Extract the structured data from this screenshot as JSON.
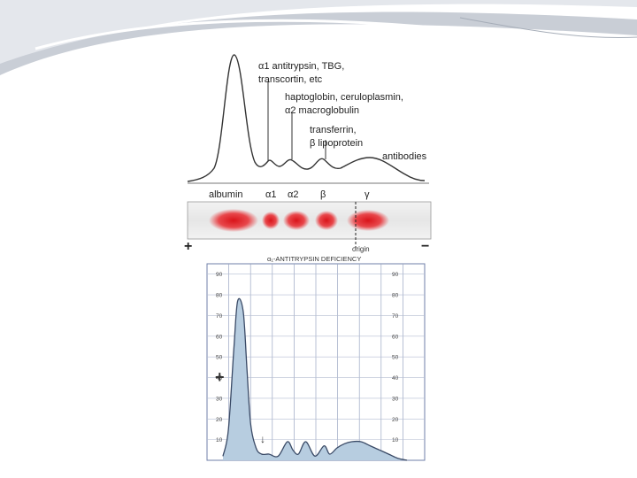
{
  "electrophoresis": {
    "annotations": [
      {
        "id": "ann-1",
        "lines": [
          "α1 antitrypsin, TBG,",
          "transcortin, etc"
        ]
      },
      {
        "id": "ann-2",
        "lines": [
          "haptoglobin, ceruloplasmin,",
          "α2 macroglobulin"
        ]
      },
      {
        "id": "ann-3",
        "lines": [
          "transferrin,",
          "β lipoprotein"
        ]
      },
      {
        "id": "ann-4",
        "lines": [
          "antibodies"
        ]
      }
    ],
    "zones": [
      "albumin",
      "α1",
      "α2",
      "β",
      "γ"
    ],
    "origin_label": "origin",
    "anode_symbol": "+",
    "cathode_symbol": "−"
  },
  "chart_data": {
    "type": "area",
    "title": "α₁-ANTITRYPSIN DEFICIENCY",
    "xlabel": "",
    "ylabel": "",
    "ylim": [
      0,
      95
    ],
    "yticks": [
      10,
      20,
      30,
      40,
      50,
      60,
      70,
      80,
      90
    ],
    "left_tick_labels": [
      "10",
      "20",
      "30",
      "40",
      "50",
      "60",
      "70",
      "80",
      "90"
    ],
    "right_tick_labels": [
      "10",
      "20",
      "30",
      "40",
      "50",
      "60",
      "70",
      "80",
      "90"
    ],
    "x": [
      0,
      0.03,
      0.06,
      0.08,
      0.11,
      0.13,
      0.15,
      0.18,
      0.21,
      0.25,
      0.3,
      0.35,
      0.38,
      0.41,
      0.45,
      0.5,
      0.55,
      0.58,
      0.62,
      0.66,
      0.7,
      0.75,
      0.8,
      0.85,
      0.9,
      0.95,
      1
    ],
    "y": [
      2,
      15,
      55,
      77,
      72,
      45,
      18,
      6,
      3,
      3,
      2,
      9,
      5,
      3,
      9,
      2,
      7,
      3,
      6,
      8,
      9,
      9,
      7,
      5,
      3,
      1,
      0
    ],
    "markers": [
      "+",
      "↓"
    ],
    "fill_color": "#b7cde0",
    "line_color": "#3a4a66",
    "grid": true
  }
}
